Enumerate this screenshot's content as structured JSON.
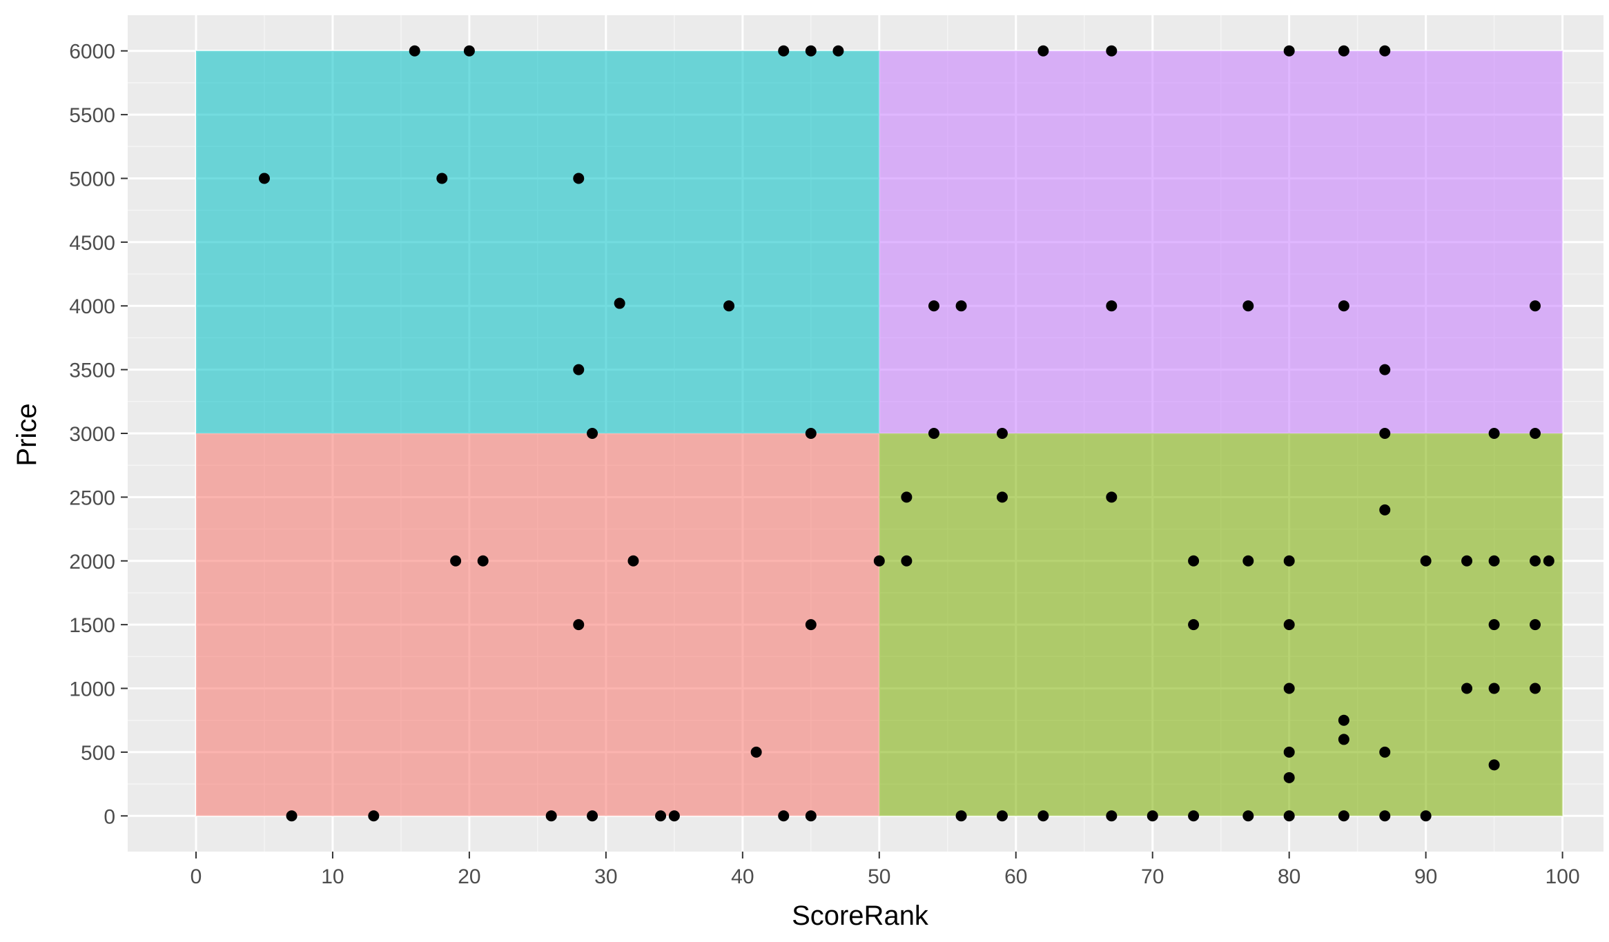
{
  "chart_data": {
    "type": "scatter",
    "title": "",
    "xlabel": "ScoreRank",
    "ylabel": "Price",
    "xlim": [
      -5,
      103
    ],
    "ylim": [
      -280,
      6280
    ],
    "x_ticks": [
      0,
      10,
      20,
      30,
      40,
      50,
      60,
      70,
      80,
      90,
      100
    ],
    "y_ticks": [
      0,
      500,
      1000,
      1500,
      2000,
      2500,
      3000,
      3500,
      4000,
      4500,
      5000,
      5500,
      6000
    ],
    "grid": true,
    "legend": "none",
    "panel_background": "#ebebeb",
    "point_color": "#000000",
    "regions": [
      {
        "x": [
          0,
          50
        ],
        "y": [
          3000,
          6000
        ],
        "color": "#00bfc4"
      },
      {
        "x": [
          50,
          100
        ],
        "y": [
          3000,
          6000
        ],
        "color": "#c77cff"
      },
      {
        "x": [
          0,
          50
        ],
        "y": [
          0,
          3000
        ],
        "color": "#f8766d"
      },
      {
        "x": [
          50,
          100
        ],
        "y": [
          0,
          3000
        ],
        "color": "#7cae00"
      }
    ],
    "region_alpha": 0.55,
    "points": [
      [
        16,
        6000
      ],
      [
        20,
        6000
      ],
      [
        43,
        6000
      ],
      [
        45,
        6000
      ],
      [
        47,
        6000
      ],
      [
        62,
        6000
      ],
      [
        67,
        6000
      ],
      [
        80,
        6000
      ],
      [
        84,
        6000
      ],
      [
        87,
        6000
      ],
      [
        5,
        5000
      ],
      [
        18,
        5000
      ],
      [
        28,
        5000
      ],
      [
        31,
        4020
      ],
      [
        39,
        4000
      ],
      [
        54,
        4000
      ],
      [
        56,
        4000
      ],
      [
        67,
        4000
      ],
      [
        77,
        4000
      ],
      [
        84,
        4000
      ],
      [
        98,
        4000
      ],
      [
        28,
        3500
      ],
      [
        87,
        3500
      ],
      [
        29,
        3000
      ],
      [
        45,
        3000
      ],
      [
        54,
        3000
      ],
      [
        59,
        3000
      ],
      [
        87,
        3000
      ],
      [
        95,
        3000
      ],
      [
        98,
        3000
      ],
      [
        52,
        2500
      ],
      [
        59,
        2500
      ],
      [
        67,
        2500
      ],
      [
        87,
        2400
      ],
      [
        19,
        2000
      ],
      [
        21,
        2000
      ],
      [
        32,
        2000
      ],
      [
        50,
        2000
      ],
      [
        52,
        2000
      ],
      [
        73,
        2000
      ],
      [
        77,
        2000
      ],
      [
        80,
        2000
      ],
      [
        90,
        2000
      ],
      [
        93,
        2000
      ],
      [
        95,
        2000
      ],
      [
        98,
        2000
      ],
      [
        99,
        2000
      ],
      [
        28,
        1500
      ],
      [
        45,
        1500
      ],
      [
        73,
        1500
      ],
      [
        80,
        1500
      ],
      [
        95,
        1500
      ],
      [
        98,
        1500
      ],
      [
        80,
        1000
      ],
      [
        93,
        1000
      ],
      [
        95,
        1000
      ],
      [
        98,
        1000
      ],
      [
        84,
        750
      ],
      [
        84,
        600
      ],
      [
        41,
        500
      ],
      [
        80,
        500
      ],
      [
        87,
        500
      ],
      [
        95,
        400
      ],
      [
        80,
        300
      ],
      [
        7,
        0
      ],
      [
        13,
        0
      ],
      [
        26,
        0
      ],
      [
        29,
        0
      ],
      [
        34,
        0
      ],
      [
        35,
        0
      ],
      [
        43,
        0
      ],
      [
        45,
        0
      ],
      [
        56,
        0
      ],
      [
        59,
        0
      ],
      [
        62,
        0
      ],
      [
        67,
        0
      ],
      [
        70,
        0
      ],
      [
        73,
        0
      ],
      [
        77,
        0
      ],
      [
        80,
        0
      ],
      [
        84,
        0
      ],
      [
        87,
        0
      ],
      [
        90,
        0
      ]
    ]
  }
}
